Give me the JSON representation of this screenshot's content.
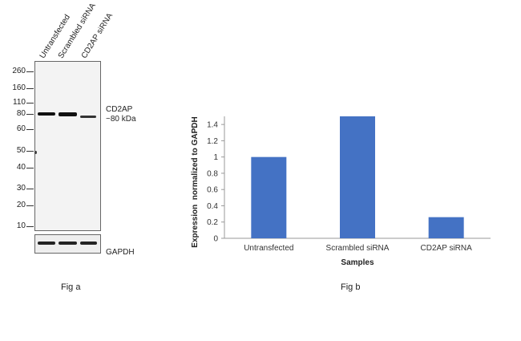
{
  "fig_a": {
    "lane_labels": [
      "Untransfected",
      "Scrambled siRNA",
      "CD2AP siRNA"
    ],
    "markers": [
      "260",
      "160",
      "110",
      "80",
      "60",
      "50",
      "40",
      "30",
      "20",
      "10"
    ],
    "target_label_line1": "CD2AP",
    "target_label_line2": "~80 kDa",
    "loading_control_label": "GAPDH",
    "caption": "Fig a"
  },
  "fig_b": {
    "caption": "Fig b"
  },
  "chart_data": {
    "type": "bar",
    "categories": [
      "Untransfected",
      "Scrambled siRNA",
      "CD2AP siRNA"
    ],
    "values": [
      1.0,
      1.5,
      0.26
    ],
    "title": "",
    "xlabel": "Samples",
    "ylabel": "Expression  normalized to GAPDH",
    "ylim": [
      0,
      1.5
    ],
    "yticks": [
      "0",
      "0.2",
      "0.4",
      "0.6",
      "0.8",
      "1",
      "1.2",
      "1.4"
    ],
    "grid": false,
    "bar_color": "#4472c4"
  }
}
